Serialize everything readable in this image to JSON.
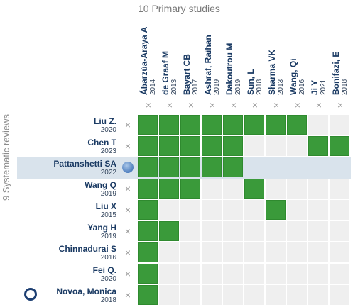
{
  "header": {
    "title": "10 Primary studies"
  },
  "sidebar": {
    "title": "9 Systematic reviews"
  },
  "columns": [
    {
      "name": "Ábarzúa-Araya A",
      "year": "2014"
    },
    {
      "name": "de Graaf M",
      "year": "2013"
    },
    {
      "name": "Bayart CB",
      "year": "2017"
    },
    {
      "name": "Ashraf, Raihan",
      "year": "2019"
    },
    {
      "name": "Dakoutrou M",
      "year": "2019"
    },
    {
      "name": "Sun, L",
      "year": "2018"
    },
    {
      "name": "Sharma VK",
      "year": "2013"
    },
    {
      "name": "Wang, Qi",
      "year": "2016"
    },
    {
      "name": "Ji Y",
      "year": "2021"
    },
    {
      "name": "Bonifazi, E",
      "year": "2018"
    }
  ],
  "rows": [
    {
      "name": "Liu Z.",
      "year": "2020",
      "cells": [
        1,
        1,
        1,
        1,
        1,
        1,
        1,
        1,
        0,
        0
      ]
    },
    {
      "name": "Chen T",
      "year": "2023",
      "cells": [
        1,
        1,
        1,
        1,
        1,
        0,
        0,
        0,
        1,
        1
      ]
    },
    {
      "name": "Pattanshetti SA",
      "year": "2022",
      "cells": [
        1,
        1,
        1,
        1,
        1,
        0,
        0,
        0,
        0,
        0
      ],
      "highlighted": true
    },
    {
      "name": "Wang Q",
      "year": "2019",
      "cells": [
        1,
        1,
        1,
        0,
        0,
        1,
        0,
        0,
        0,
        0
      ]
    },
    {
      "name": "Liu X",
      "year": "2015",
      "cells": [
        1,
        0,
        0,
        0,
        0,
        0,
        1,
        0,
        0,
        0
      ]
    },
    {
      "name": "Yang H",
      "year": "2019",
      "cells": [
        1,
        1,
        0,
        0,
        0,
        0,
        0,
        0,
        0,
        0
      ]
    },
    {
      "name": "Chinnadurai S",
      "year": "2016",
      "cells": [
        1,
        0,
        0,
        0,
        0,
        0,
        0,
        0,
        0,
        0
      ]
    },
    {
      "name": "Fei Q.",
      "year": "2020",
      "cells": [
        1,
        0,
        0,
        0,
        0,
        0,
        0,
        0,
        0,
        0
      ]
    },
    {
      "name": "Novoa, Monica",
      "year": "2018",
      "cells": [
        1,
        0,
        0,
        0,
        0,
        0,
        0,
        0,
        0,
        0
      ]
    }
  ],
  "icons": {
    "remove": "×",
    "remove_name": "close-icon",
    "selected": "circle-dot-icon",
    "logo": "ring-logo-icon"
  },
  "colors": {
    "included": "#3a9a3a",
    "empty": "#efefef",
    "highlight": "#d9e3ec",
    "text": "#1a3a63"
  }
}
